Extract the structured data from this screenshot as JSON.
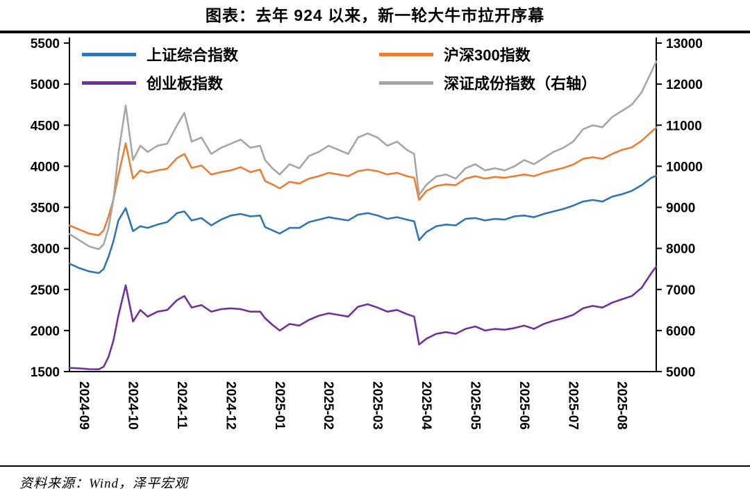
{
  "page": {
    "title": "图表：去年 924 以来，新一轮大牛市拉开序幕",
    "source": "资料来源：Wind，泽平宏观"
  },
  "chart_data": {
    "type": "line",
    "title": "图表：去年 924 以来，新一轮大牛市拉开序幕",
    "grid": false,
    "legend_position": "top-inside",
    "x_unit": "months since start of 2024-09 (fractional month index)",
    "x_labels": [
      "2024-09",
      "2024-10",
      "2024-11",
      "2024-12",
      "2025-01",
      "2025-02",
      "2025-03",
      "2025-04",
      "2025-05",
      "2025-06",
      "2025-07",
      "2025-08"
    ],
    "left_axis": {
      "min": 1500,
      "max": 5500,
      "step": 500
    },
    "right_axis": {
      "min": 5000,
      "max": 13000,
      "step": 1000
    },
    "x": [
      0,
      0.2,
      0.4,
      0.6,
      0.7,
      0.8,
      0.9,
      1.0,
      1.15,
      1.3,
      1.45,
      1.6,
      1.8,
      2.0,
      2.2,
      2.35,
      2.5,
      2.7,
      2.9,
      3.1,
      3.3,
      3.5,
      3.7,
      3.9,
      4.0,
      4.15,
      4.3,
      4.5,
      4.7,
      4.9,
      5.1,
      5.3,
      5.5,
      5.7,
      5.9,
      6.1,
      6.3,
      6.5,
      6.7,
      6.9,
      7.05,
      7.15,
      7.3,
      7.5,
      7.7,
      7.9,
      8.1,
      8.3,
      8.5,
      8.7,
      8.9,
      9.1,
      9.3,
      9.5,
      9.7,
      9.9,
      10.1,
      10.3,
      10.5,
      10.7,
      10.9,
      11.1,
      11.3,
      11.5,
      11.7,
      11.9,
      12.0
    ],
    "series": [
      {
        "name": "上证综合指数",
        "axis": "left",
        "color": "#2E75B6",
        "values": [
          2815,
          2760,
          2720,
          2700,
          2750,
          2900,
          3090,
          3340,
          3490,
          3210,
          3270,
          3250,
          3290,
          3320,
          3430,
          3450,
          3340,
          3370,
          3280,
          3350,
          3400,
          3420,
          3390,
          3400,
          3260,
          3220,
          3180,
          3250,
          3250,
          3320,
          3350,
          3380,
          3360,
          3340,
          3410,
          3430,
          3400,
          3360,
          3380,
          3350,
          3330,
          3100,
          3200,
          3270,
          3290,
          3280,
          3360,
          3370,
          3340,
          3360,
          3350,
          3390,
          3400,
          3380,
          3420,
          3450,
          3480,
          3520,
          3570,
          3590,
          3570,
          3630,
          3660,
          3700,
          3770,
          3860,
          3885
        ]
      },
      {
        "name": "沪深300指数",
        "axis": "left",
        "color": "#ED7D31",
        "values": [
          3280,
          3230,
          3180,
          3160,
          3220,
          3390,
          3600,
          3890,
          4280,
          3850,
          3950,
          3920,
          3950,
          3970,
          4100,
          4150,
          3980,
          4010,
          3900,
          3930,
          3950,
          3990,
          3930,
          3960,
          3820,
          3780,
          3730,
          3810,
          3790,
          3850,
          3880,
          3920,
          3900,
          3880,
          3940,
          3960,
          3940,
          3900,
          3920,
          3880,
          3860,
          3590,
          3700,
          3760,
          3780,
          3770,
          3850,
          3880,
          3850,
          3870,
          3860,
          3880,
          3900,
          3880,
          3920,
          3950,
          3980,
          4020,
          4090,
          4110,
          4090,
          4150,
          4200,
          4230,
          4310,
          4420,
          4470
        ]
      },
      {
        "name": "创业板指数",
        "axis": "left",
        "color": "#7030A0",
        "values": [
          1545,
          1540,
          1530,
          1528,
          1560,
          1680,
          1880,
          2180,
          2550,
          2110,
          2250,
          2170,
          2230,
          2250,
          2370,
          2420,
          2280,
          2310,
          2230,
          2260,
          2270,
          2260,
          2230,
          2230,
          2150,
          2070,
          2000,
          2080,
          2060,
          2130,
          2180,
          2210,
          2190,
          2170,
          2290,
          2320,
          2280,
          2230,
          2250,
          2200,
          2170,
          1830,
          1900,
          1960,
          1980,
          1960,
          2020,
          2050,
          2000,
          2020,
          2010,
          2030,
          2060,
          2020,
          2080,
          2120,
          2150,
          2190,
          2270,
          2300,
          2280,
          2340,
          2380,
          2420,
          2520,
          2700,
          2780
        ]
      },
      {
        "name": "深证成份指数（右轴）",
        "axis": "right",
        "color": "#A6A6A6",
        "values": [
          8350,
          8200,
          8050,
          7980,
          8100,
          8500,
          9200,
          10300,
          11480,
          10150,
          10500,
          10350,
          10500,
          10550,
          11000,
          11300,
          10600,
          10700,
          10300,
          10450,
          10550,
          10650,
          10450,
          10500,
          10150,
          9950,
          9800,
          10050,
          9950,
          10250,
          10350,
          10500,
          10400,
          10300,
          10700,
          10800,
          10700,
          10500,
          10600,
          10400,
          10300,
          9300,
          9550,
          9750,
          9800,
          9700,
          9950,
          10050,
          9900,
          9950,
          9900,
          10000,
          10150,
          10050,
          10200,
          10350,
          10450,
          10600,
          10900,
          11000,
          10950,
          11200,
          11350,
          11500,
          11800,
          12300,
          12550
        ]
      }
    ]
  }
}
